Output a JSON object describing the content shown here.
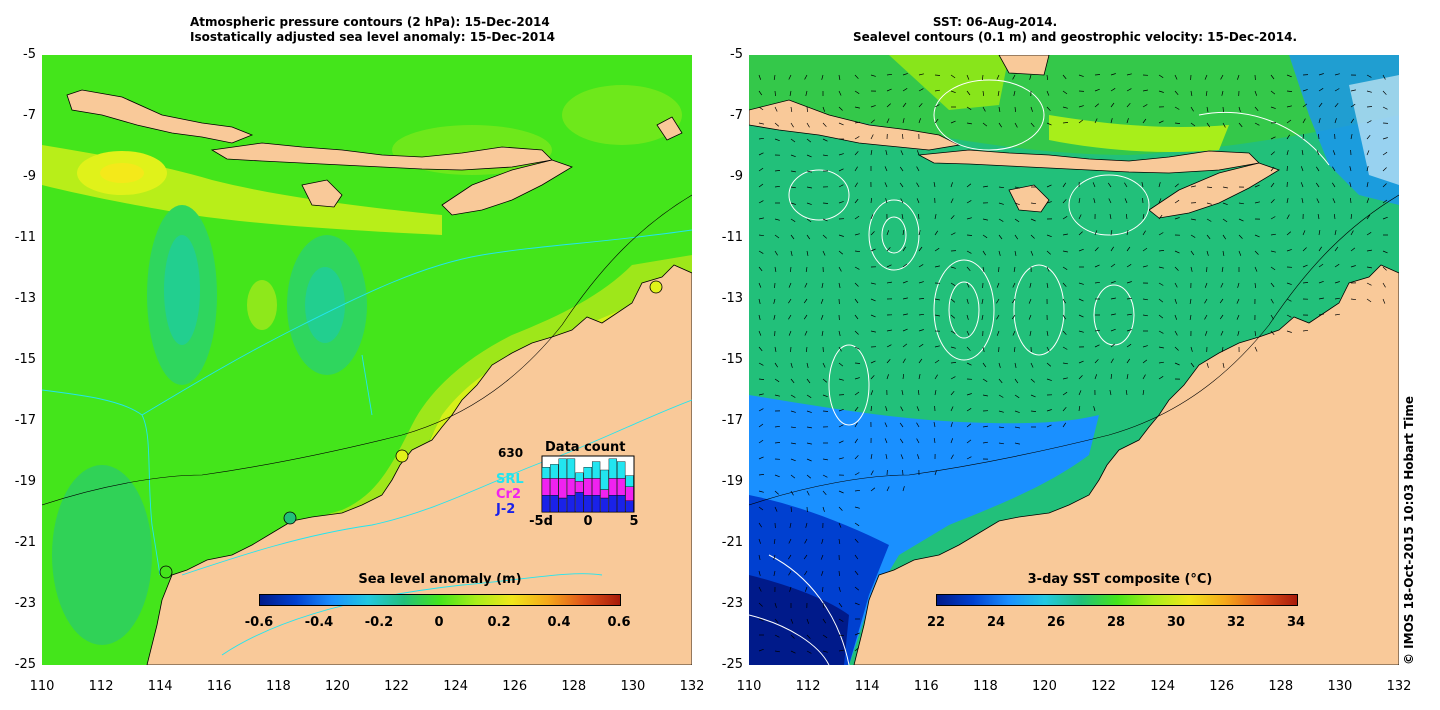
{
  "left_panel": {
    "title_line1": "Atmospheric pressure contours (2 hPa): 15-Dec-2014",
    "title_line2": "Isostatically adjusted sea level anomaly: 15-Dec-2014",
    "colorbar": {
      "title": "Sea level anomaly (m)",
      "ticks": [
        "-0.6",
        "-0.4",
        "-0.2",
        "0",
        "0.2",
        "0.4",
        "0.6"
      ],
      "range": [
        -0.6,
        0.6
      ]
    },
    "data_count": {
      "title": "Data count",
      "max_label": "630",
      "satellites": [
        "SRL",
        "Cr2",
        "J-2"
      ],
      "sat_colors": [
        "#22e5f0",
        "#f022f0",
        "#1a22e8"
      ],
      "x_ticks": [
        "-5d",
        "0",
        "5"
      ],
      "bars": [
        {
          "j2": 0.3,
          "cr2": 0.3,
          "srl": 0.2
        },
        {
          "j2": 0.3,
          "cr2": 0.3,
          "srl": 0.25
        },
        {
          "j2": 0.25,
          "cr2": 0.35,
          "srl": 0.35
        },
        {
          "j2": 0.3,
          "cr2": 0.3,
          "srl": 0.35
        },
        {
          "j2": 0.35,
          "cr2": 0.2,
          "srl": 0.15
        },
        {
          "j2": 0.3,
          "cr2": 0.3,
          "srl": 0.2
        },
        {
          "j2": 0.3,
          "cr2": 0.3,
          "srl": 0.3
        },
        {
          "j2": 0.25,
          "cr2": 0.15,
          "srl": 0.35
        },
        {
          "j2": 0.3,
          "cr2": 0.3,
          "srl": 0.35
        },
        {
          "j2": 0.3,
          "cr2": 0.3,
          "srl": 0.3
        },
        {
          "j2": 0.2,
          "cr2": 0.25,
          "srl": 0.2
        }
      ]
    }
  },
  "right_panel": {
    "title_line1": "SST: 06-Aug-2014.",
    "title_line2": "Sealevel contours (0.1 m) and geostrophic velocity: 15-Dec-2014.",
    "colorbar": {
      "title": "3-day SST composite (°C)",
      "ticks": [
        "22",
        "24",
        "26",
        "28",
        "30",
        "32",
        "34"
      ],
      "range": [
        22,
        34
      ]
    }
  },
  "axes": {
    "y_ticks": [
      "-5",
      "-7",
      "-9",
      "-11",
      "-13",
      "-15",
      "-17",
      "-19",
      "-21",
      "-23",
      "-25"
    ],
    "x_ticks": [
      "110",
      "112",
      "114",
      "116",
      "118",
      "120",
      "122",
      "124",
      "126",
      "128",
      "130",
      "132"
    ],
    "lon_range": [
      110,
      132
    ],
    "lat_range": [
      -25,
      -5
    ]
  },
  "credit": "© IMOS 18-Oct-2015 10:03 Hobart Time",
  "colors": {
    "land": "#f9c999",
    "ocean_base_left": "#44e51b",
    "ocean_base_right": "#22c07a",
    "coastline": "#000000",
    "bathymetry": "#22e5f0"
  }
}
